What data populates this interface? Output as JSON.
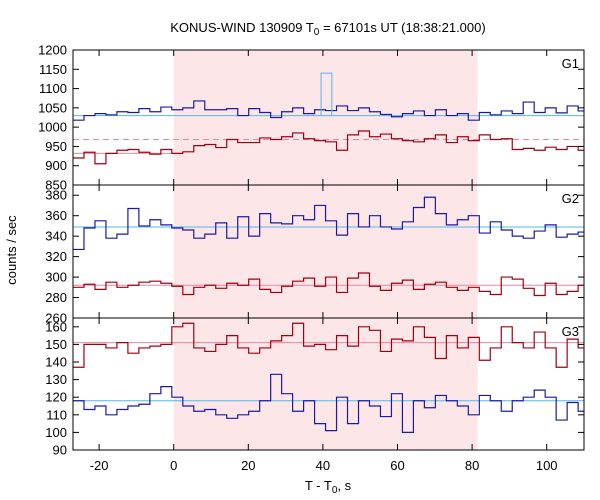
{
  "colors": {
    "blue": "#1a1aa6",
    "red": "#a00010",
    "level_blue": "#55b7ea",
    "level_red": "#ec86a4",
    "shade": "#fde6e8",
    "spike": "#55b7ea"
  },
  "chart_data": {
    "type": "line",
    "title_prefix": "KONUS-WIND 130909 T",
    "title_sub": "0",
    "title_suffix": " = 67101s UT (18:38:21.000)",
    "xlabel_prefix": "T - T",
    "xlabel_sub": "0",
    "xlabel_suffix": ", s",
    "ylabel": "counts / sec",
    "xlim": [
      -27,
      110
    ],
    "x_ticks": [
      -20,
      0,
      20,
      40,
      60,
      80,
      100
    ],
    "x_tick_labels": [
      "-20",
      "0",
      "20",
      "40",
      "60",
      "80",
      "100"
    ],
    "shaded_interval": [
      0,
      81.5
    ],
    "bin_edges_start": -27,
    "bin_width": 2.944,
    "panels": [
      {
        "label": "G1",
        "ylim": [
          850,
          1200
        ],
        "y_ticks": [
          850,
          900,
          950,
          1000,
          1050,
          1100,
          1150,
          1200
        ],
        "y_tick_labels": [
          "850",
          "900",
          "950",
          "1000",
          "1050",
          "1100",
          "1150",
          "1200"
        ],
        "series": [
          {
            "color_key": "blue",
            "level": 1030,
            "level_key": "level_blue",
            "values": [
              1018,
              1030,
              1035,
              1032,
              1040,
              1038,
              1048,
              1040,
              1052,
              1045,
              1050,
              1068,
              1045,
              1045,
              1048,
              1030,
              1048,
              1038,
              1025,
              1040,
              1050,
              1035,
              1045,
              1043,
              1055,
              1043,
              1050,
              1040,
              1033,
              1027,
              1035,
              1042,
              1030,
              1045,
              1030,
              1035,
              1018,
              1038,
              1032,
              1042,
              1035,
              1065,
              1038,
              1050,
              1037,
              1055,
              1042,
              1028
            ]
          },
          {
            "color_key": "red",
            "level": 968,
            "level_key": "level_red",
            "level_dashed": true,
            "values": [
              920,
              935,
              905,
              932,
              940,
              942,
              935,
              930,
              942,
              932,
              936,
              952,
              955,
              947,
              968,
              960,
              960,
              972,
              968,
              975,
              985,
              970,
              965,
              962,
              940,
              980,
              990,
              975,
              982,
              970,
              965,
              962,
              970,
              980,
              960,
              975,
              965,
              980,
              968,
              970,
              942,
              945,
              940,
              948,
              942,
              950,
              940,
              942
            ]
          },
          {
            "color_key": "level_blue",
            "spike": {
              "x0": 39.5,
              "x1": 42.4,
              "value": 1140
            }
          }
        ],
        "extra_levels": [
          {
            "value": 932,
            "color_key": "level_red",
            "x_range": [
              -27,
              0
            ]
          }
        ]
      },
      {
        "label": "G2",
        "ylim": [
          260,
          390
        ],
        "y_ticks": [
          260,
          280,
          300,
          320,
          340,
          360,
          380
        ],
        "y_tick_labels": [
          "260",
          "280",
          "300",
          "320",
          "340",
          "360",
          "380"
        ],
        "series": [
          {
            "color_key": "blue",
            "level": 349,
            "level_key": "level_blue",
            "values": [
              327,
              348,
              355,
              338,
              342,
              367,
              350,
              356,
              351,
              348,
              346,
              338,
              342,
              353,
              338,
              359,
              340,
              362,
              353,
              352,
              360,
              356,
              370,
              355,
              341,
              362,
              349,
              360,
              349,
              347,
              354,
              368,
              378,
              362,
              351,
              356,
              360,
              343,
              354,
              346,
              340,
              338,
              345,
              351,
              339,
              342,
              344,
              328
            ]
          },
          {
            "color_key": "red",
            "level": 292,
            "level_key": "level_red",
            "values": [
              290,
              293,
              288,
              295,
              290,
              292,
              295,
              296,
              294,
              291,
              283,
              290,
              292,
              289,
              294,
              292,
              298,
              288,
              285,
              291,
              296,
              299,
              291,
              300,
              285,
              299,
              304,
              291,
              287,
              294,
              297,
              288,
              293,
              295,
              290,
              287,
              290,
              286,
              283,
              300,
              298,
              289,
              282,
              294,
              283,
              286,
              292,
              283
            ]
          }
        ]
      },
      {
        "label": "G3",
        "ylim": [
          90,
          165
        ],
        "y_ticks": [
          90,
          100,
          110,
          120,
          130,
          140,
          150,
          160
        ],
        "y_tick_labels": [
          "90",
          "100",
          "110",
          "120",
          "130",
          "140",
          "150",
          "160"
        ],
        "series": [
          {
            "color_key": "red",
            "level": 151,
            "level_key": "level_red",
            "values": [
              137,
              150,
              150,
              148,
              151,
              145,
              148,
              149,
              150,
              160,
              162,
              148,
              146,
              150,
              155,
              148,
              145,
              148,
              152,
              155,
              162,
              149,
              150,
              147,
              155,
              149,
              160,
              158,
              146,
              153,
              152,
              160,
              154,
              142,
              155,
              148,
              154,
              141,
              148,
              160,
              151,
              148,
              157,
              148,
              137,
              153,
              148,
              142
            ]
          },
          {
            "color_key": "blue",
            "level": 118,
            "level_key": "level_blue",
            "values": [
              118,
              113,
              115,
              110,
              113,
              115,
              116,
              122,
              126,
              120,
              115,
              112,
              113,
              110,
              108,
              110,
              112,
              118,
              133,
              122,
              112,
              118,
              105,
              101,
              120,
              105,
              118,
              115,
              109,
              122,
              100,
              118,
              114,
              121,
              118,
              115,
              110,
              121,
              118,
              112,
              118,
              120,
              124,
              120,
              107,
              117,
              112,
              118
            ]
          }
        ]
      }
    ]
  }
}
